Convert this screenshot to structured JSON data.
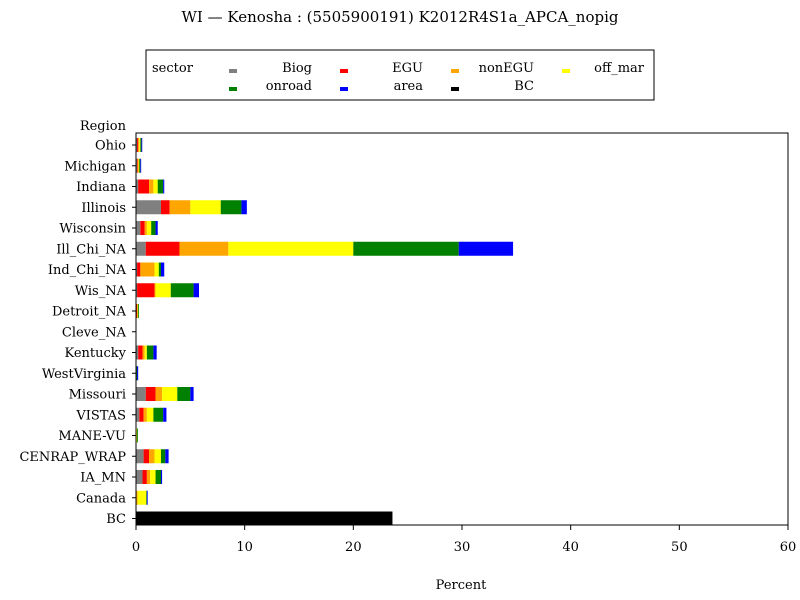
{
  "chart_data": {
    "type": "bar",
    "orientation": "horizontal",
    "stacked": true,
    "title": "WI — Kenosha : (5505900191) K2012R4S1a_APCA_nopig",
    "xlabel": "Percent",
    "ylabel": "Region",
    "xlim": [
      0,
      60
    ],
    "xticks": [
      0,
      10,
      20,
      30,
      40,
      50,
      60
    ],
    "grid": false,
    "legend_placement": "top",
    "legend_title": "sector",
    "categories": [
      "Ohio",
      "Michigan",
      "Indiana",
      "Illinois",
      "Wisconsin",
      "Ill_Chi_NA",
      "Ind_Chi_NA",
      "Wis_NA",
      "Detroit_NA",
      "Cleve_NA",
      "Kentucky",
      "WestVirginia",
      "Missouri",
      "VISTAS",
      "MANE-VU",
      "CENRAP_WRAP",
      "IA_MN",
      "Canada",
      "BC"
    ],
    "series": [
      {
        "name": "Biog",
        "color": "#808080",
        "values": [
          0.1,
          0.1,
          0.2,
          2.3,
          0.4,
          0.9,
          0.1,
          0.1,
          0.05,
          0,
          0.2,
          0.05,
          0.9,
          0.3,
          0.05,
          0.7,
          0.6,
          0.05,
          0
        ]
      },
      {
        "name": "EGU",
        "color": "#ff0000",
        "values": [
          0.1,
          0.05,
          1.0,
          0.8,
          0.4,
          3.1,
          0.3,
          1.6,
          0.05,
          0,
          0.4,
          0,
          0.9,
          0.4,
          0,
          0.5,
          0.4,
          0,
          0
        ]
      },
      {
        "name": "nonEGU",
        "color": "#ffa500",
        "values": [
          0.1,
          0.1,
          0.4,
          1.9,
          0.2,
          4.5,
          1.3,
          0.1,
          0.05,
          0,
          0.2,
          0,
          0.6,
          0.3,
          0,
          0.5,
          0.3,
          0.1,
          0
        ]
      },
      {
        "name": "off_mar",
        "color": "#ffff00",
        "values": [
          0.1,
          0.05,
          0.4,
          2.8,
          0.4,
          11.5,
          0.4,
          1.4,
          0.05,
          0,
          0.2,
          0,
          1.4,
          0.6,
          0.05,
          0.6,
          0.5,
          0.8,
          0
        ]
      },
      {
        "name": "onroad",
        "color": "#008000",
        "values": [
          0.1,
          0.1,
          0.5,
          1.9,
          0.4,
          9.7,
          0.2,
          2.1,
          0.05,
          0,
          0.6,
          0.05,
          1.2,
          0.9,
          0.05,
          0.4,
          0.5,
          0.05,
          0
        ]
      },
      {
        "name": "area",
        "color": "#0000ff",
        "values": [
          0.05,
          0.05,
          0.1,
          0.5,
          0.2,
          5.0,
          0.3,
          0.5,
          0,
          0,
          0.3,
          0.1,
          0.3,
          0.3,
          0,
          0.3,
          0.1,
          0.05,
          0
        ]
      },
      {
        "name": "BC",
        "color": "#000000",
        "values": [
          0,
          0,
          0,
          0,
          0,
          0,
          0,
          0,
          0,
          0,
          0,
          0,
          0,
          0,
          0,
          0,
          0,
          0,
          23.6
        ]
      }
    ],
    "legend_order": [
      "Biog",
      "EGU",
      "nonEGU",
      "off_mar",
      "onroad",
      "area",
      "BC"
    ]
  }
}
